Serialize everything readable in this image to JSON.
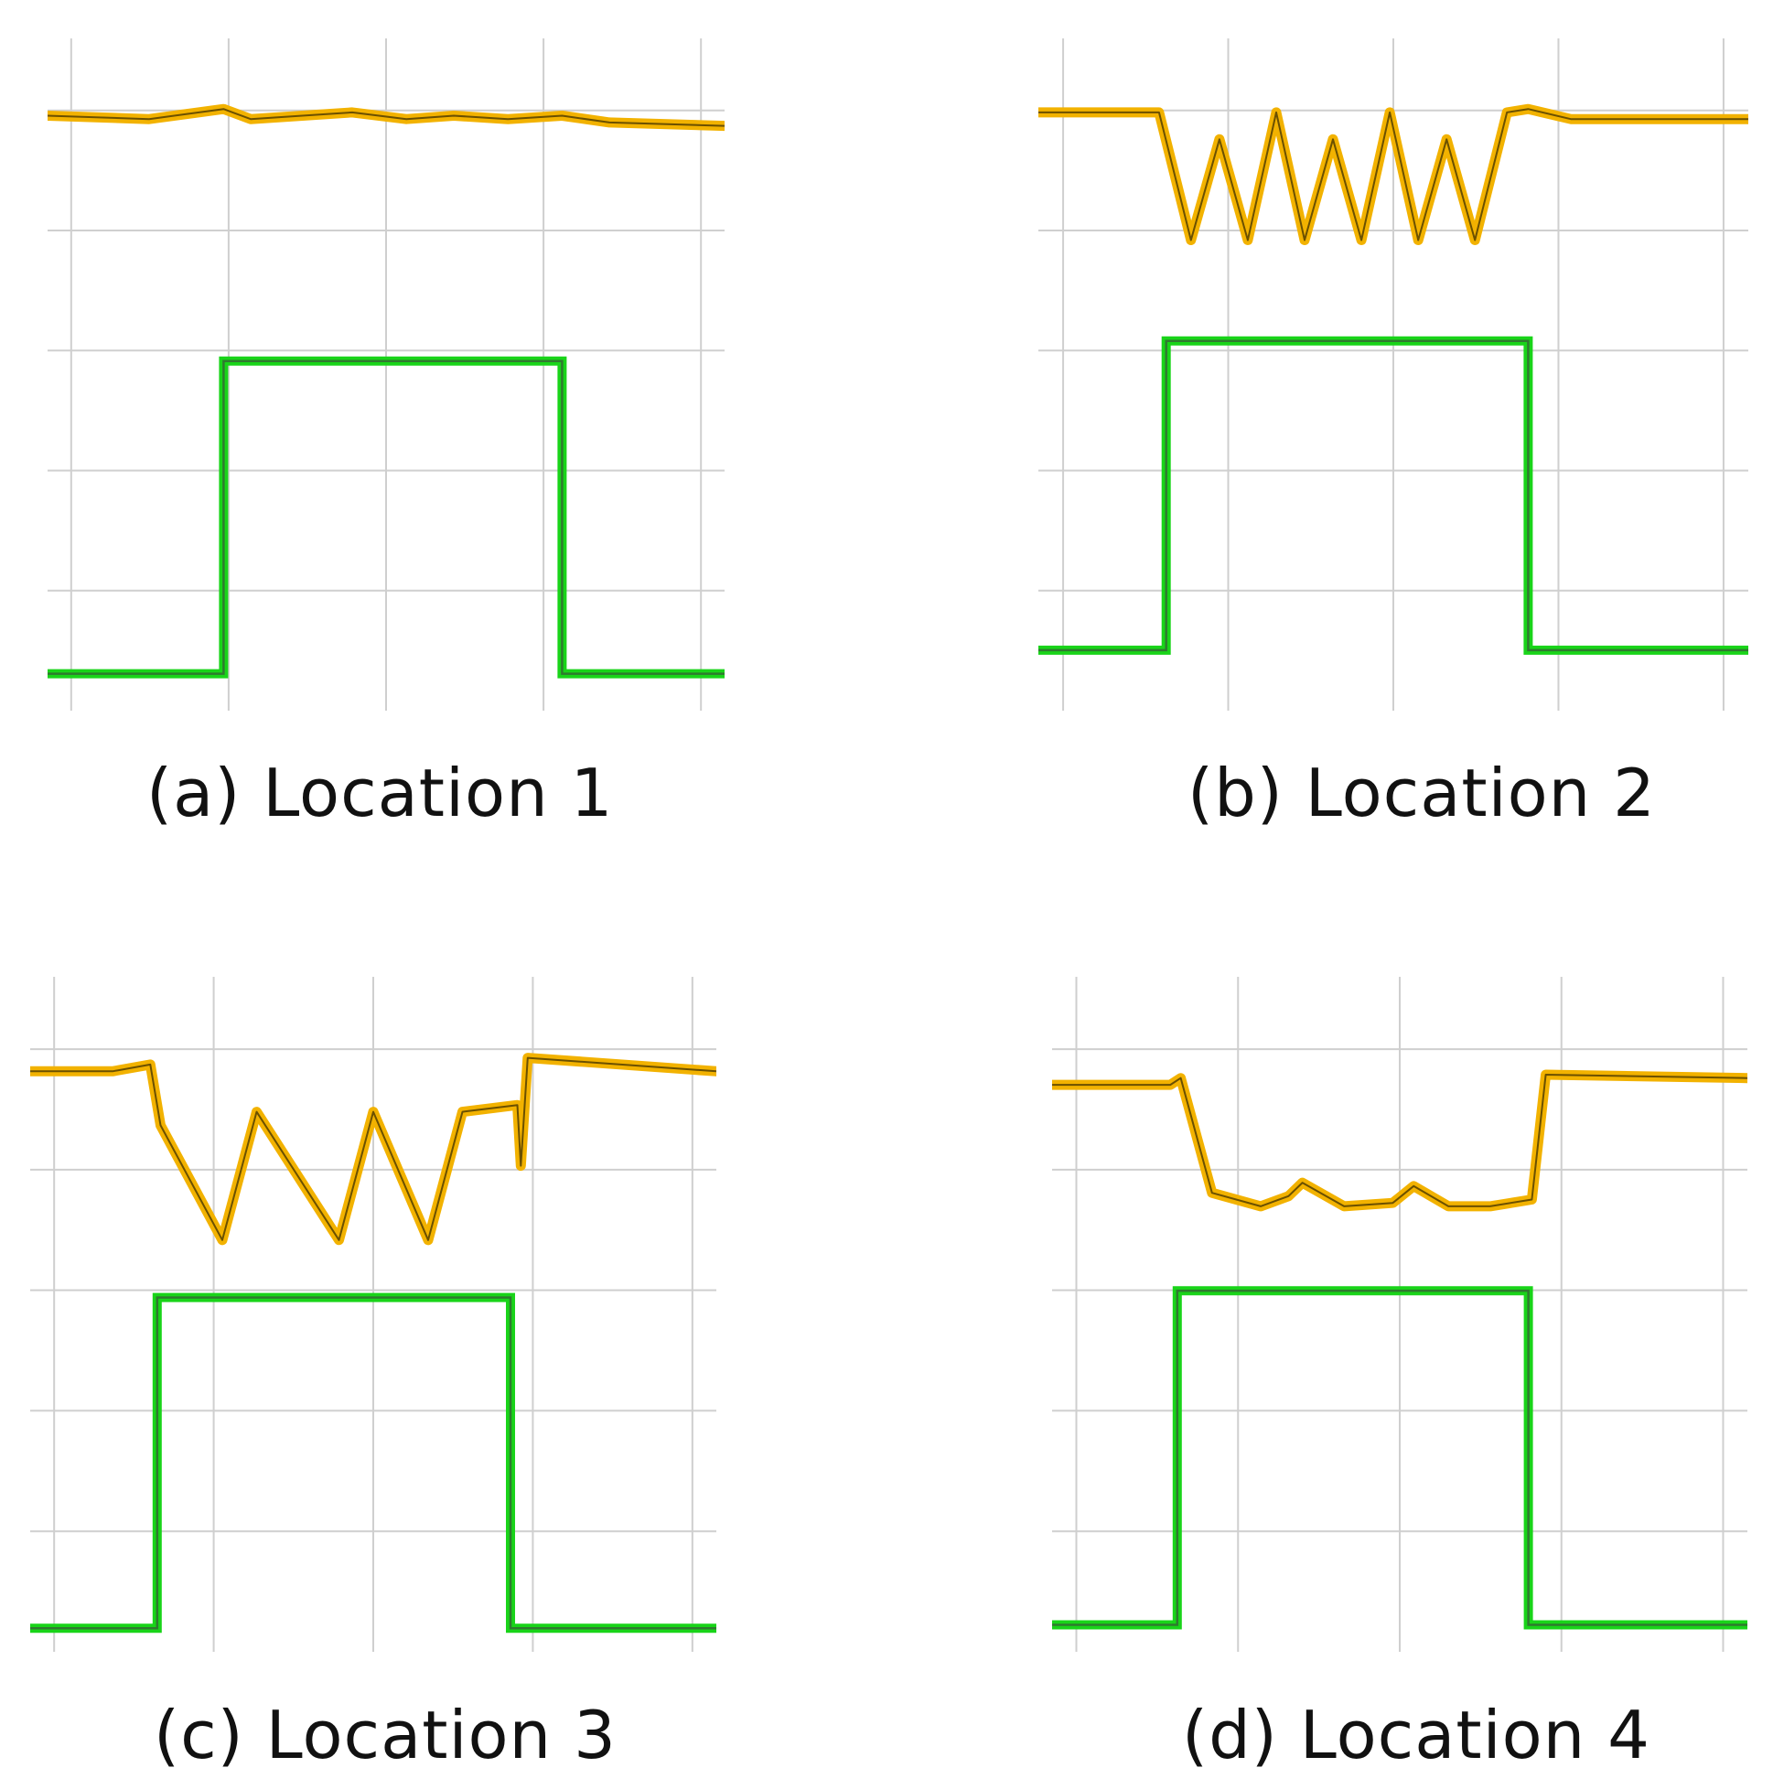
{
  "figure": {
    "captions": [
      "(a) Location 1",
      "(b) Location 2",
      "(c) Location 3",
      "(d) Location 4"
    ]
  },
  "colors": {
    "grid": "#cfcfcf",
    "channel_1": "#f2b200",
    "channel_2": "#19d419"
  },
  "chart_data": [
    {
      "type": "line",
      "title": "(a) Location 1",
      "xlabel": "",
      "ylabel": "",
      "grid": true,
      "xlim": [
        0,
        10
      ],
      "ylim": [
        0,
        10
      ],
      "series": [
        {
          "color": "#f2b200",
          "x": [
            0,
            1.5,
            2.6,
            3.0,
            4.5,
            5.3,
            6.0,
            6.8,
            7.6,
            8.3,
            10
          ],
          "y": [
            8.85,
            8.8,
            8.95,
            8.8,
            8.9,
            8.8,
            8.85,
            8.8,
            8.85,
            8.75,
            8.7
          ]
        },
        {
          "color": "#19d419",
          "x": [
            0,
            2.6,
            2.6,
            7.6,
            7.6,
            10
          ],
          "y": [
            0.55,
            0.55,
            5.2,
            5.2,
            0.55,
            0.55
          ]
        }
      ]
    },
    {
      "type": "line",
      "title": "(b) Location 2",
      "xlabel": "",
      "ylabel": "",
      "grid": true,
      "xlim": [
        0,
        10
      ],
      "ylim": [
        0,
        10
      ],
      "series": [
        {
          "color": "#f2b200",
          "x": [
            0,
            1.6,
            1.7,
            2.15,
            2.55,
            2.95,
            3.35,
            3.75,
            4.15,
            4.55,
            4.95,
            5.35,
            5.75,
            6.15,
            6.6,
            6.9,
            7.5,
            10
          ],
          "y": [
            8.9,
            8.9,
            8.9,
            7.0,
            8.5,
            7.0,
            8.9,
            7.0,
            8.5,
            7.0,
            8.9,
            7.0,
            8.5,
            7.0,
            8.9,
            8.95,
            8.8,
            8.8
          ]
        },
        {
          "color": "#19d419",
          "x": [
            0,
            1.8,
            1.8,
            6.9,
            6.9,
            10
          ],
          "y": [
            0.9,
            0.9,
            5.5,
            5.5,
            0.9,
            0.9
          ]
        }
      ]
    },
    {
      "type": "line",
      "title": "(c) Location 3",
      "xlabel": "",
      "ylabel": "",
      "grid": true,
      "xlim": [
        0,
        10
      ],
      "ylim": [
        0,
        10
      ],
      "series": [
        {
          "color": "#f2b200",
          "x": [
            0,
            1.2,
            1.75,
            1.9,
            2.8,
            3.3,
            4.5,
            5.0,
            5.8,
            6.3,
            7.1,
            7.15,
            7.25,
            10
          ],
          "y": [
            8.6,
            8.6,
            8.7,
            7.8,
            6.1,
            8.0,
            6.1,
            8.0,
            6.1,
            8.0,
            8.1,
            7.2,
            8.8,
            8.6
          ]
        },
        {
          "color": "#19d419",
          "x": [
            0,
            1.85,
            1.85,
            7.0,
            7.0,
            10
          ],
          "y": [
            0.35,
            0.35,
            5.25,
            5.25,
            0.35,
            0.35
          ]
        }
      ]
    },
    {
      "type": "line",
      "title": "(d) Location 4",
      "xlabel": "",
      "ylabel": "",
      "grid": true,
      "xlim": [
        0,
        10
      ],
      "ylim": [
        0,
        10
      ],
      "series": [
        {
          "color": "#f2b200",
          "x": [
            0,
            1.7,
            1.85,
            2.3,
            3.0,
            3.4,
            3.6,
            4.2,
            4.9,
            5.2,
            5.7,
            6.3,
            6.9,
            7.1,
            10
          ],
          "y": [
            8.4,
            8.4,
            8.5,
            6.8,
            6.6,
            6.75,
            6.95,
            6.6,
            6.65,
            6.9,
            6.6,
            6.6,
            6.7,
            8.55,
            8.5
          ]
        },
        {
          "color": "#19d419",
          "x": [
            0,
            1.8,
            1.8,
            6.85,
            6.85,
            10
          ],
          "y": [
            0.4,
            0.4,
            5.35,
            5.35,
            0.4,
            0.4
          ]
        }
      ]
    }
  ]
}
